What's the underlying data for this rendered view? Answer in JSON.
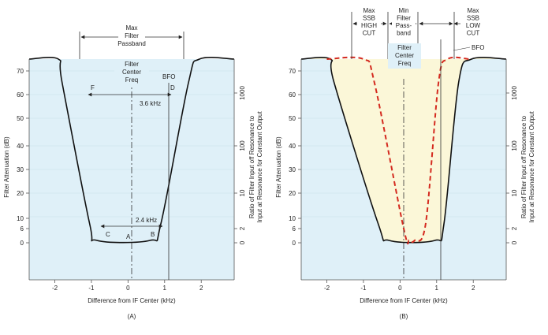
{
  "colors": {
    "plot_bg": "#dff0f8",
    "passband_fill": "#fbf7d8",
    "curve": "#111111",
    "red_dash": "#d42a1f",
    "text": "#222222"
  },
  "chart_data": [
    {
      "type": "line",
      "panel_label": "(A)",
      "xlabel": "Difference from IF Center (kHz)",
      "ylabel": "Filter Attenuation (dB)",
      "y2label": "Ratio of Filter Input off Resonance to Input at Resonance for Constant Output",
      "x_ticks": [
        "-2",
        "-1",
        "0",
        "1",
        "2"
      ],
      "y_ticks": [
        "0",
        "6",
        "10",
        "20",
        "30",
        "40",
        "50",
        "60",
        "70"
      ],
      "y2_ticks": [
        "0",
        "2",
        "10",
        "100",
        "1000"
      ],
      "xlim": [
        -2.7,
        2.9
      ],
      "ylim": [
        -5,
        76
      ],
      "series": [
        {
          "values": [
            [
              -2.7,
              75
            ],
            [
              -1.9,
              75
            ],
            [
              -1.8,
              65
            ],
            [
              -1.05,
              8
            ],
            [
              -0.85,
              1
            ],
            [
              0.6,
              1
            ],
            [
              0.9,
              8
            ],
            [
              1.65,
              65
            ],
            [
              1.95,
              75
            ],
            [
              2.9,
              75
            ]
          ]
        }
      ],
      "annotations": {
        "max_passband": "Max\nFilter\nPassband",
        "bfo": "BFO",
        "center_freq": "Filter\nCenter\nFreq",
        "width_3_6": "3.6 kHz",
        "width_2_4": "2.4 kHz",
        "points": [
          "F",
          "D",
          "C",
          "A",
          "B"
        ]
      }
    },
    {
      "type": "line",
      "panel_label": "(B)",
      "xlabel": "Difference from IF Center (kHz)",
      "ylabel": "Filter Attenuation (dB)",
      "y2label": "Ratio of Filter Input off Resonance to Input at Resonance for Constant Output",
      "x_ticks": [
        "-2",
        "-1",
        "0",
        "1",
        "2"
      ],
      "y_ticks": [
        "0",
        "6",
        "10",
        "20",
        "30",
        "40",
        "50",
        "60",
        "70"
      ],
      "y2_ticks": [
        "0",
        "2",
        "10",
        "100",
        "1000"
      ],
      "xlim": [
        -2.7,
        2.9
      ],
      "ylim": [
        -5,
        76
      ],
      "series": [
        {
          "values": [
            [
              -2.7,
              75
            ],
            [
              -1.9,
              75
            ],
            [
              -1.8,
              65
            ],
            [
              -0.6,
              8
            ],
            [
              -0.3,
              1
            ],
            [
              0.95,
              1
            ],
            [
              1.2,
              8
            ],
            [
              1.6,
              65
            ],
            [
              1.95,
              75
            ],
            [
              2.9,
              75
            ]
          ]
        },
        {
          "style": "dashed",
          "values": [
            [
              -2.0,
              75
            ],
            [
              -1.0,
              75
            ],
            [
              -0.7,
              65
            ],
            [
              0.1,
              6
            ],
            [
              0.25,
              1
            ],
            [
              0.4,
              1
            ],
            [
              0.7,
              8
            ],
            [
              1.05,
              65
            ],
            [
              1.3,
              75
            ],
            [
              1.9,
              75
            ]
          ]
        }
      ],
      "annotations": {
        "max_ssb_high_cut": "Max\nSSB\nHIGH\nCUT",
        "min_passband": "Min\nFilter\nPass-\nband",
        "max_ssb_low_cut": "Max\nSSB\nLOW\nCUT",
        "bfo": "BFO",
        "center_freq": "Filter\nCenter\nFreq"
      }
    }
  ]
}
